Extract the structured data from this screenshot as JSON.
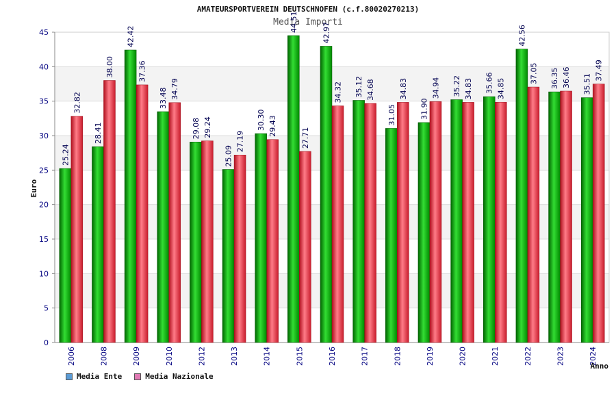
{
  "header": {
    "title": "AMATEURSPORTVEREIN DEUTSCHNOFEN (c.f.80020270213)",
    "subtitle": "Media Importi"
  },
  "legend": {
    "items": [
      {
        "label": "Media Ente",
        "color": "#5b9bd5"
      },
      {
        "label": "Media Nazionale",
        "color": "#e07ab4"
      }
    ]
  },
  "colors": {
    "ente_bar": "#00b300",
    "nazionale_bar": "#e8303f",
    "axis_text": "#000080",
    "band": "#f3f3f3",
    "grid": "#dddddd"
  },
  "chart_data": {
    "type": "bar",
    "title": "Media Importi",
    "xlabel": "Anno",
    "ylabel": "Euro",
    "ylim": [
      0,
      45
    ],
    "yticks": [
      0,
      5,
      10,
      15,
      20,
      25,
      30,
      35,
      40,
      45
    ],
    "categories": [
      "2006",
      "2008",
      "2009",
      "2010",
      "2012",
      "2013",
      "2014",
      "2015",
      "2016",
      "2017",
      "2018",
      "2019",
      "2020",
      "2021",
      "2022",
      "2023",
      "2024"
    ],
    "series": [
      {
        "name": "Media Ente",
        "values": [
          25.24,
          28.41,
          42.42,
          33.48,
          29.08,
          25.09,
          30.3,
          44.51,
          42.97,
          35.12,
          31.05,
          31.9,
          35.22,
          35.66,
          42.56,
          36.35,
          35.51
        ]
      },
      {
        "name": "Media Nazionale",
        "values": [
          32.82,
          38.0,
          37.36,
          34.79,
          29.24,
          27.19,
          29.43,
          27.71,
          34.32,
          34.68,
          34.83,
          34.94,
          34.83,
          34.85,
          37.05,
          36.46,
          37.49
        ]
      }
    ]
  }
}
